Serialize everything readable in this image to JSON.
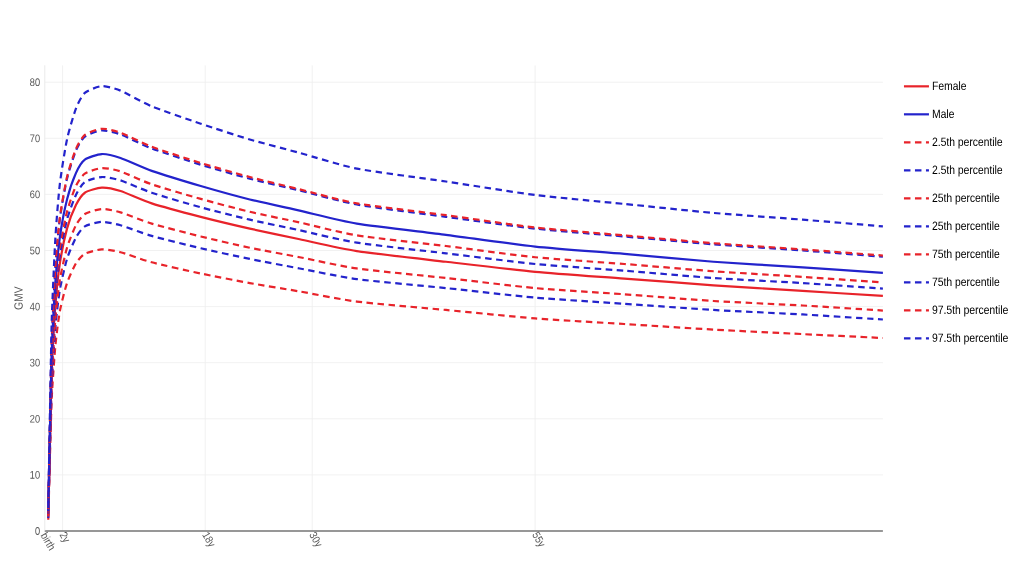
{
  "chart_data": {
    "type": "line",
    "ylabel": "GMV",
    "x": [
      0.4,
      0.6,
      0.8,
      1.2,
      1.7,
      2.5,
      3.5,
      4.5,
      6.4,
      8.5,
      12,
      17.5,
      23,
      28.6,
      35,
      45,
      55,
      65,
      75,
      85,
      94
    ],
    "xlim": [
      0,
      94
    ],
    "xticks": [
      {
        "value": 0,
        "label": "birth"
      },
      {
        "value": 2,
        "label": "2y"
      },
      {
        "value": 18,
        "label": "18y"
      },
      {
        "value": 30,
        "label": "30y"
      },
      {
        "value": 55,
        "label": "55y"
      }
    ],
    "ylim": [
      0,
      83
    ],
    "yticks": [
      0,
      10,
      20,
      30,
      40,
      50,
      60,
      70,
      80
    ],
    "grid": true,
    "legend": "right",
    "series": [
      {
        "name": "Female",
        "color": "#e8232a",
        "line_style": "solid",
        "values": [
          2.9,
          17.1,
          29.4,
          40.4,
          47.7,
          53.9,
          58.1,
          60.3,
          61.2,
          60.6,
          58.4,
          56.0,
          53.9,
          52.0,
          49.9,
          48.0,
          46.2,
          45.0,
          43.8,
          42.8,
          41.9
        ]
      },
      {
        "name": "Male",
        "color": "#2323cc",
        "line_style": "solid",
        "values": [
          3.5,
          18.8,
          32.3,
          44.4,
          52.4,
          59.1,
          63.8,
          66.2,
          67.2,
          66.5,
          64.2,
          61.5,
          59.1,
          57.1,
          54.8,
          52.8,
          50.7,
          49.4,
          48.0,
          47.0,
          46.0
        ]
      },
      {
        "name": "2.5th percentile",
        "color": "#e8232a",
        "line_style": "dashed",
        "values": [
          2.0,
          14.1,
          24.1,
          33.1,
          39.2,
          44.2,
          47.7,
          49.4,
          50.2,
          49.7,
          47.9,
          45.9,
          44.2,
          42.7,
          40.9,
          39.4,
          37.9,
          36.9,
          35.9,
          35.1,
          34.4
        ]
      },
      {
        "name": "2.5th percentile",
        "color": "#2323cc",
        "line_style": "dashed",
        "values": [
          2.3,
          15.4,
          26.4,
          36.4,
          43.0,
          48.5,
          52.3,
          54.3,
          55.1,
          54.5,
          52.6,
          50.4,
          48.5,
          46.8,
          44.9,
          43.3,
          41.6,
          40.5,
          39.4,
          38.6,
          37.7
        ]
      },
      {
        "name": "25th percentile",
        "color": "#e8232a",
        "line_style": "dashed",
        "values": [
          2.6,
          16.1,
          27.6,
          37.9,
          44.8,
          50.5,
          54.5,
          56.5,
          57.4,
          56.8,
          54.8,
          52.5,
          50.5,
          48.8,
          46.8,
          45.1,
          43.3,
          42.2,
          41.0,
          40.2,
          39.3
        ]
      },
      {
        "name": "25th percentile",
        "color": "#2323cc",
        "line_style": "dashed",
        "values": [
          3.1,
          17.7,
          30.3,
          41.6,
          49.2,
          55.5,
          59.9,
          62.2,
          63.1,
          62.5,
          60.3,
          57.7,
          55.5,
          53.6,
          51.4,
          49.5,
          47.6,
          46.4,
          45.1,
          44.2,
          43.2
        ]
      },
      {
        "name": "75th percentile",
        "color": "#e8232a",
        "line_style": "dashed",
        "values": [
          3.3,
          18.1,
          31.1,
          42.7,
          50.5,
          56.9,
          61.5,
          63.7,
          64.7,
          64.1,
          61.8,
          59.2,
          56.9,
          55.0,
          52.7,
          50.8,
          48.8,
          47.6,
          46.3,
          45.3,
          44.3
        ]
      },
      {
        "name": "75th percentile",
        "color": "#2323cc",
        "line_style": "dashed",
        "values": [
          3.7,
          20.0,
          34.3,
          47.1,
          55.7,
          62.8,
          67.8,
          70.3,
          71.4,
          70.7,
          68.2,
          65.3,
          62.8,
          60.7,
          58.2,
          56.0,
          53.9,
          52.5,
          51.1,
          50.0,
          48.9
        ]
      },
      {
        "name": "97.5th percentile",
        "color": "#e8232a",
        "line_style": "dashed",
        "values": [
          3.9,
          20.1,
          34.4,
          47.3,
          55.9,
          63.1,
          68.1,
          70.6,
          71.7,
          71.0,
          68.5,
          65.6,
          63.1,
          60.9,
          58.4,
          56.3,
          54.1,
          52.7,
          51.3,
          50.2,
          49.1
        ]
      },
      {
        "name": "97.5th percentile",
        "color": "#2323cc",
        "line_style": "dashed",
        "values": [
          4.1,
          22.2,
          38.1,
          52.3,
          61.9,
          69.8,
          75.3,
          78.1,
          79.3,
          78.5,
          75.7,
          72.6,
          69.8,
          67.4,
          64.6,
          62.3,
          59.9,
          58.3,
          56.7,
          55.5,
          54.3
        ]
      }
    ]
  }
}
